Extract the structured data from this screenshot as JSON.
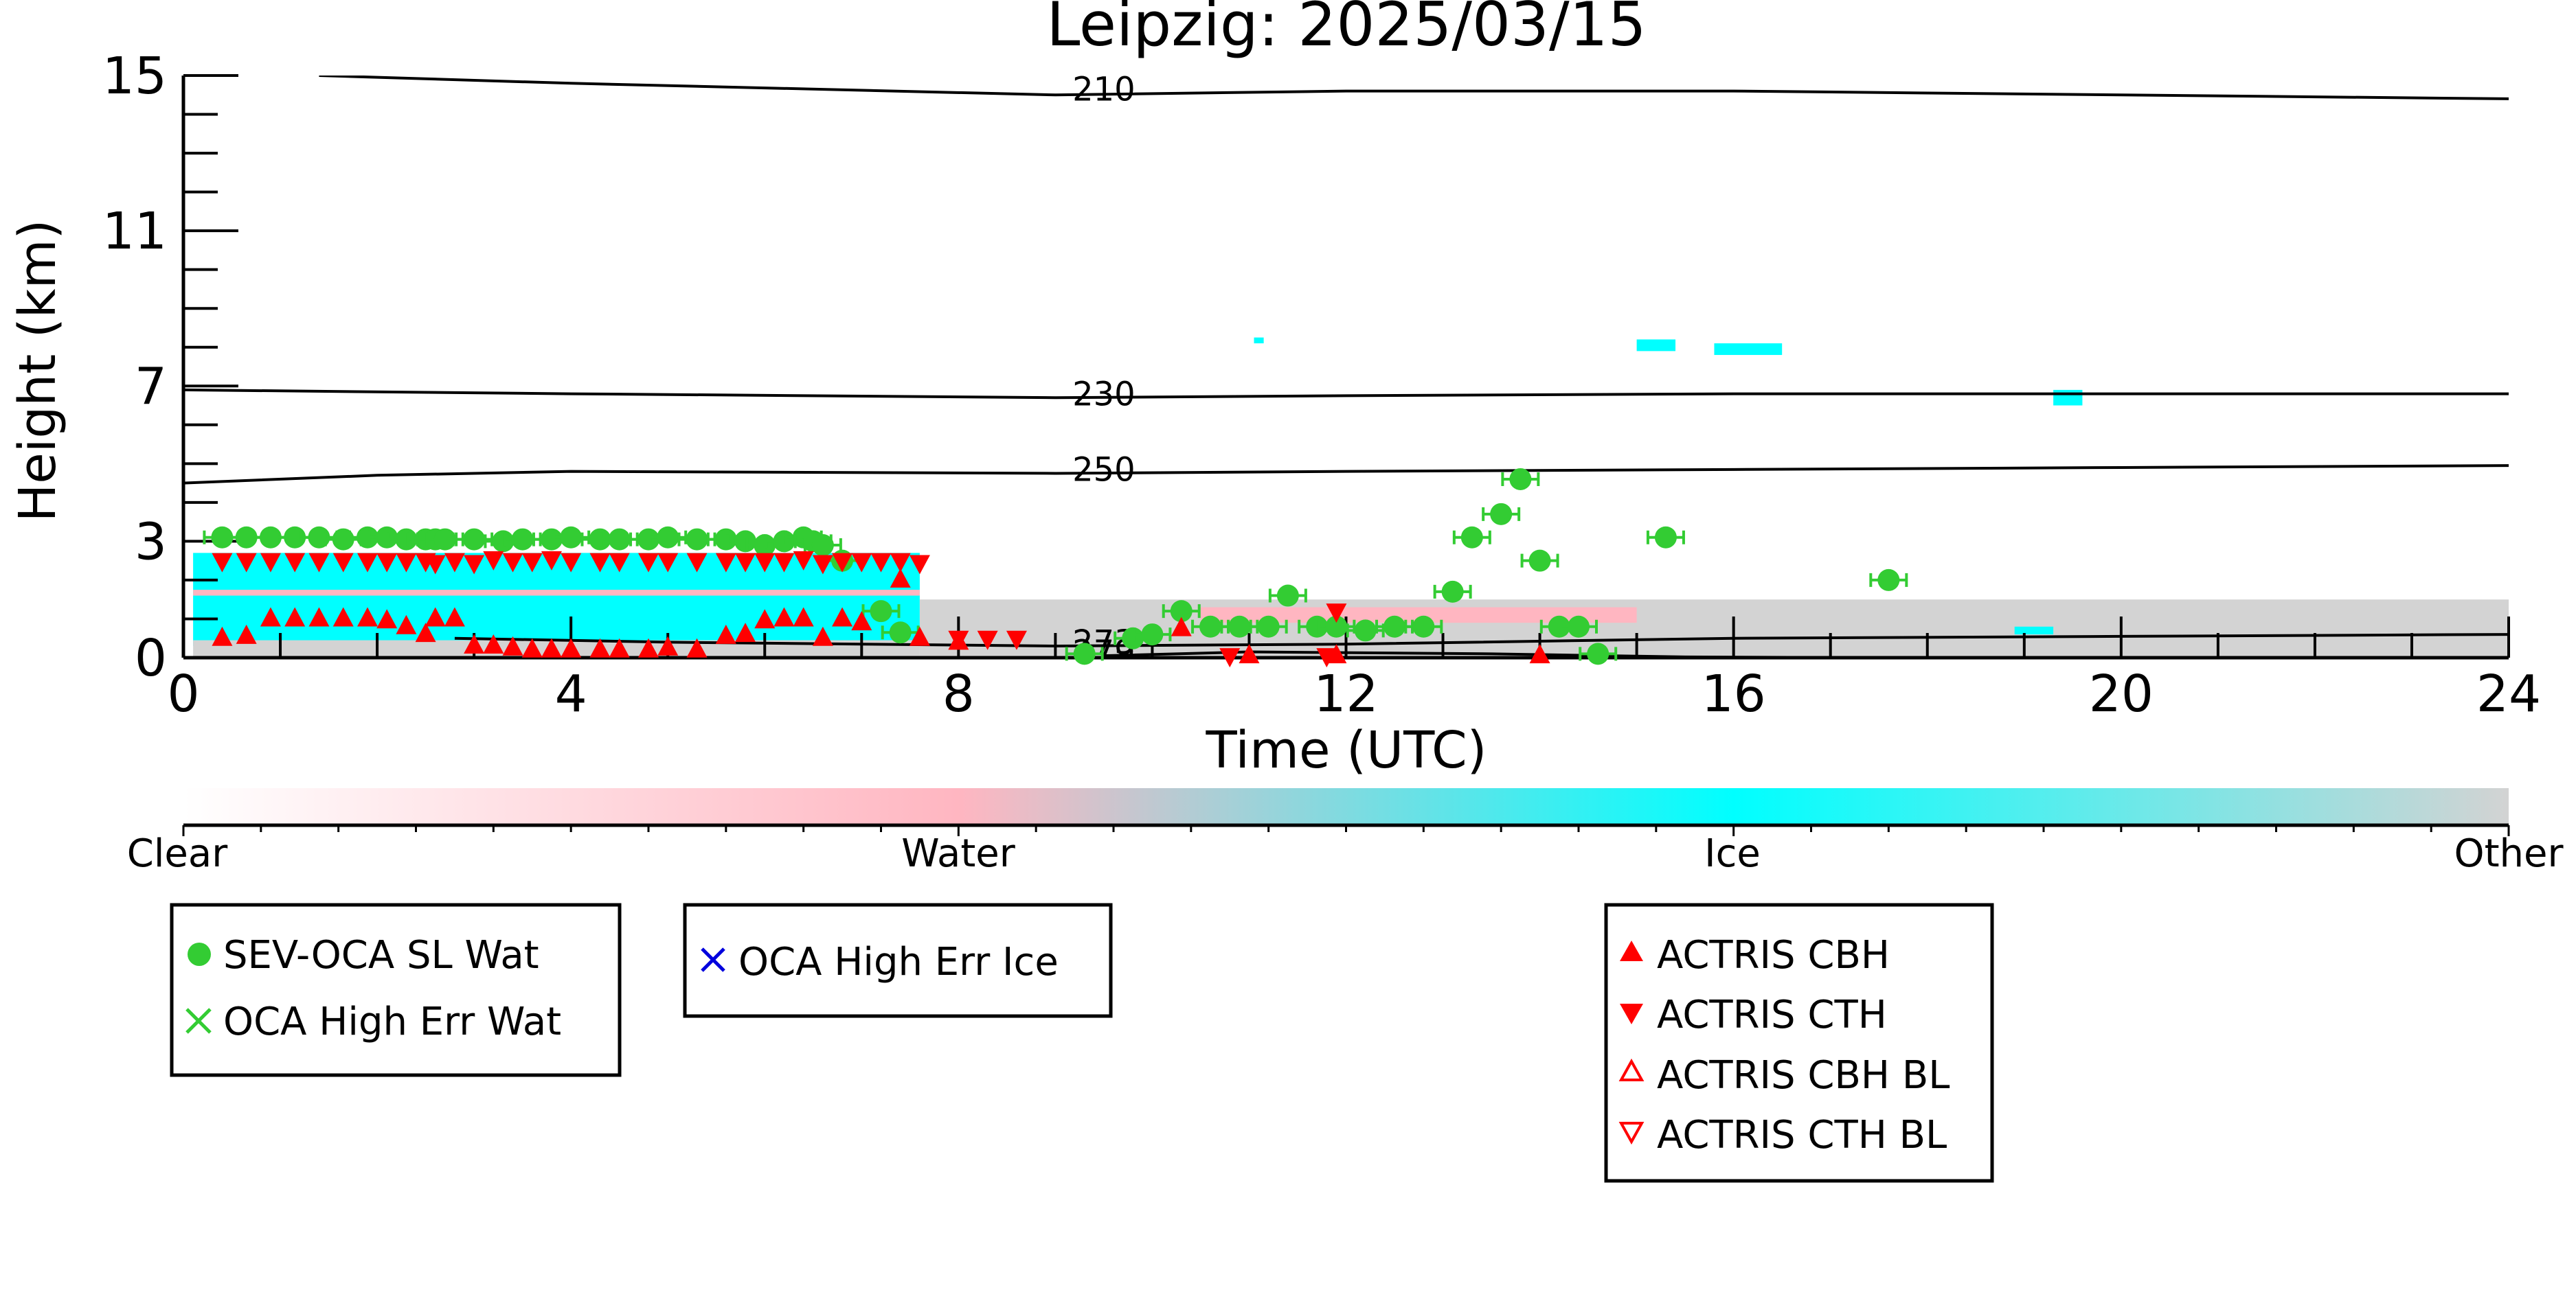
{
  "chart_data": {
    "type": "scatter",
    "title": "Leipzig: 2025/03/15",
    "xlabel": "Time (UTC)",
    "ylabel": "Height (km)",
    "xlim": [
      0,
      24
    ],
    "ylim": [
      0,
      15
    ],
    "x_ticks": [
      "0",
      "4",
      "8",
      "12",
      "16",
      "20",
      "24"
    ],
    "y_ticks": [
      "0",
      "3",
      "7",
      "11",
      "15"
    ],
    "y_tick_values": [
      0,
      3,
      7,
      11,
      15
    ],
    "isotherms": [
      {
        "label": "210",
        "points": [
          [
            1.4,
            15.0
          ],
          [
            4,
            14.8
          ],
          [
            9,
            14.5
          ],
          [
            12,
            14.6
          ],
          [
            16,
            14.6
          ],
          [
            20,
            14.5
          ],
          [
            24,
            14.4
          ]
        ]
      },
      {
        "label": "230",
        "points": [
          [
            0,
            6.9
          ],
          [
            4,
            6.8
          ],
          [
            9,
            6.7
          ],
          [
            12,
            6.75
          ],
          [
            16,
            6.8
          ],
          [
            20,
            6.8
          ],
          [
            24,
            6.8
          ]
        ]
      },
      {
        "label": "250",
        "points": [
          [
            0,
            4.5
          ],
          [
            2,
            4.7
          ],
          [
            4,
            4.8
          ],
          [
            9,
            4.75
          ],
          [
            12,
            4.8
          ],
          [
            16,
            4.85
          ],
          [
            20,
            4.9
          ],
          [
            24,
            4.95
          ]
        ]
      },
      {
        "label": "273",
        "points": [
          [
            2.8,
            0.5
          ],
          [
            5,
            0.4
          ],
          [
            7,
            0.35
          ],
          [
            9,
            0.3
          ],
          [
            12,
            0.35
          ],
          [
            16,
            0.5
          ],
          [
            20,
            0.55
          ],
          [
            24,
            0.6
          ]
        ]
      },
      {
        "label": "279",
        "points": [
          [
            9.5,
            0.05
          ],
          [
            11,
            0.15
          ],
          [
            13.5,
            0.1
          ],
          [
            15.5,
            0.02
          ],
          [
            17.5,
            0.0
          ]
        ]
      }
    ],
    "colorbar": {
      "labels": [
        "Clear",
        "Water",
        "Ice",
        "Other"
      ],
      "colors": [
        "#ffffff",
        "#ffb6c1",
        "#00ffff",
        "#d3d3d3"
      ]
    },
    "cloud_regions": [
      {
        "kind": "ice",
        "x0": 0.1,
        "x1": 7.6,
        "y0": 0.3,
        "y1": 2.7
      },
      {
        "kind": "water",
        "x0": 0.1,
        "x1": 7.6,
        "y0": 1.6,
        "y1": 1.75
      },
      {
        "kind": "other",
        "x0": 0.1,
        "x1": 7.6,
        "y0": 0.0,
        "y1": 0.45
      },
      {
        "kind": "other",
        "x0": 7.6,
        "x1": 24,
        "y0": 0.0,
        "y1": 1.5
      },
      {
        "kind": "water",
        "x0": 10.5,
        "x1": 15.0,
        "y0": 0.9,
        "y1": 1.3
      },
      {
        "kind": "ice",
        "x0": 11.05,
        "x1": 11.15,
        "y0": 8.1,
        "y1": 8.25
      },
      {
        "kind": "ice",
        "x0": 15.0,
        "x1": 15.4,
        "y0": 7.9,
        "y1": 8.2
      },
      {
        "kind": "ice",
        "x0": 15.8,
        "x1": 16.5,
        "y0": 7.8,
        "y1": 8.1
      },
      {
        "kind": "ice",
        "x0": 19.3,
        "x1": 19.6,
        "y0": 6.5,
        "y1": 6.9
      },
      {
        "kind": "ice",
        "x0": 18.9,
        "x1": 19.3,
        "y0": 0.6,
        "y1": 0.8
      }
    ],
    "series": [
      {
        "name": "SEV-OCA SL Wat",
        "marker": "circle",
        "color": "#33cc33",
        "x": [
          0.4,
          0.65,
          0.9,
          1.15,
          1.4,
          1.65,
          1.9,
          2.1,
          2.3,
          2.5,
          2.6,
          2.7,
          3.0,
          3.3,
          3.5,
          3.8,
          4.0,
          4.3,
          4.5,
          4.8,
          5.0,
          5.3,
          5.6,
          5.8,
          6.0,
          6.2,
          6.4,
          6.5,
          6.6,
          6.8,
          7.2,
          7.4,
          9.3,
          9.8,
          10.0,
          10.3,
          10.6,
          10.9,
          11.2,
          11.4,
          11.7,
          11.9,
          12.2,
          12.5,
          12.8,
          13.1,
          13.3,
          13.6,
          13.8,
          14.0,
          14.2,
          14.4,
          14.6,
          15.3,
          17.6
        ],
        "y": [
          3.1,
          3.1,
          3.1,
          3.1,
          3.1,
          3.05,
          3.1,
          3.1,
          3.05,
          3.05,
          3.05,
          3.05,
          3.05,
          3.0,
          3.05,
          3.05,
          3.1,
          3.05,
          3.05,
          3.05,
          3.1,
          3.05,
          3.05,
          3.0,
          2.9,
          3.0,
          3.1,
          3.0,
          2.9,
          2.5,
          1.2,
          0.65,
          0.1,
          0.5,
          0.6,
          1.2,
          0.8,
          0.8,
          0.8,
          1.6,
          0.8,
          0.8,
          0.7,
          0.8,
          0.8,
          1.7,
          3.1,
          3.7,
          4.6,
          2.5,
          0.8,
          0.8,
          0.1,
          3.1,
          2.0
        ],
        "error_bars": true
      },
      {
        "name": "ACTRIS CBH",
        "marker": "triangle-up",
        "color": "#ff0000",
        "x": [
          0.4,
          0.65,
          0.9,
          1.15,
          1.4,
          1.65,
          1.9,
          2.1,
          2.3,
          2.5,
          2.6,
          2.8,
          3.0,
          3.2,
          3.4,
          3.6,
          3.8,
          4.0,
          4.3,
          4.5,
          4.8,
          5.0,
          5.3,
          5.6,
          5.8,
          6.0,
          6.2,
          6.4,
          6.6,
          6.8,
          7.0,
          7.4,
          7.6,
          8.0,
          10.3,
          11.0,
          11.9,
          14.0
        ],
        "y": [
          0.5,
          0.55,
          1.0,
          1.0,
          1.0,
          1.0,
          1.0,
          0.95,
          0.8,
          0.6,
          1.0,
          1.0,
          0.3,
          0.3,
          0.25,
          0.2,
          0.2,
          0.2,
          0.2,
          0.2,
          0.2,
          0.25,
          0.2,
          0.55,
          0.6,
          0.95,
          1.0,
          1.0,
          0.5,
          1.0,
          0.9,
          2.0,
          0.5,
          0.4,
          0.75,
          0.05,
          0.05,
          0.05
        ]
      },
      {
        "name": "ACTRIS CTH",
        "marker": "triangle-down",
        "color": "#ff0000",
        "x": [
          0.4,
          0.65,
          0.9,
          1.15,
          1.4,
          1.65,
          1.9,
          2.1,
          2.3,
          2.5,
          2.6,
          2.8,
          3.0,
          3.2,
          3.4,
          3.6,
          3.8,
          4.0,
          4.3,
          4.5,
          4.8,
          5.0,
          5.3,
          5.6,
          5.8,
          6.0,
          6.2,
          6.4,
          6.6,
          6.8,
          7.0,
          7.2,
          7.4,
          7.6,
          8.0,
          8.3,
          8.6,
          10.8,
          11.8,
          11.9
        ],
        "y": [
          2.5,
          2.5,
          2.5,
          2.5,
          2.5,
          2.5,
          2.5,
          2.5,
          2.5,
          2.5,
          2.45,
          2.5,
          2.45,
          2.55,
          2.5,
          2.5,
          2.55,
          2.5,
          2.5,
          2.5,
          2.5,
          2.5,
          2.5,
          2.5,
          2.5,
          2.5,
          2.5,
          2.55,
          2.45,
          2.5,
          2.5,
          2.5,
          2.5,
          2.45,
          0.5,
          0.5,
          0.5,
          0.05,
          0.05,
          1.2
        ]
      }
    ],
    "legends": [
      {
        "entries": [
          {
            "label": "SEV-OCA SL Wat",
            "marker": "circle",
            "color": "#33cc33"
          },
          {
            "label": "OCA High Err Wat",
            "marker": "x",
            "color": "#33cc33"
          }
        ]
      },
      {
        "entries": [
          {
            "label": "OCA High Err Ice",
            "marker": "x",
            "color": "#0000dd"
          }
        ]
      },
      {
        "entries": [
          {
            "label": "ACTRIS CBH",
            "marker": "triangle-up",
            "color": "#ff0000"
          },
          {
            "label": "ACTRIS CTH",
            "marker": "triangle-down",
            "color": "#ff0000"
          },
          {
            "label": "ACTRIS CBH BL",
            "marker": "triangle-up-open",
            "color": "#ff0000"
          },
          {
            "label": "ACTRIS CTH BL",
            "marker": "triangle-down-open",
            "color": "#ff0000"
          }
        ]
      }
    ]
  }
}
